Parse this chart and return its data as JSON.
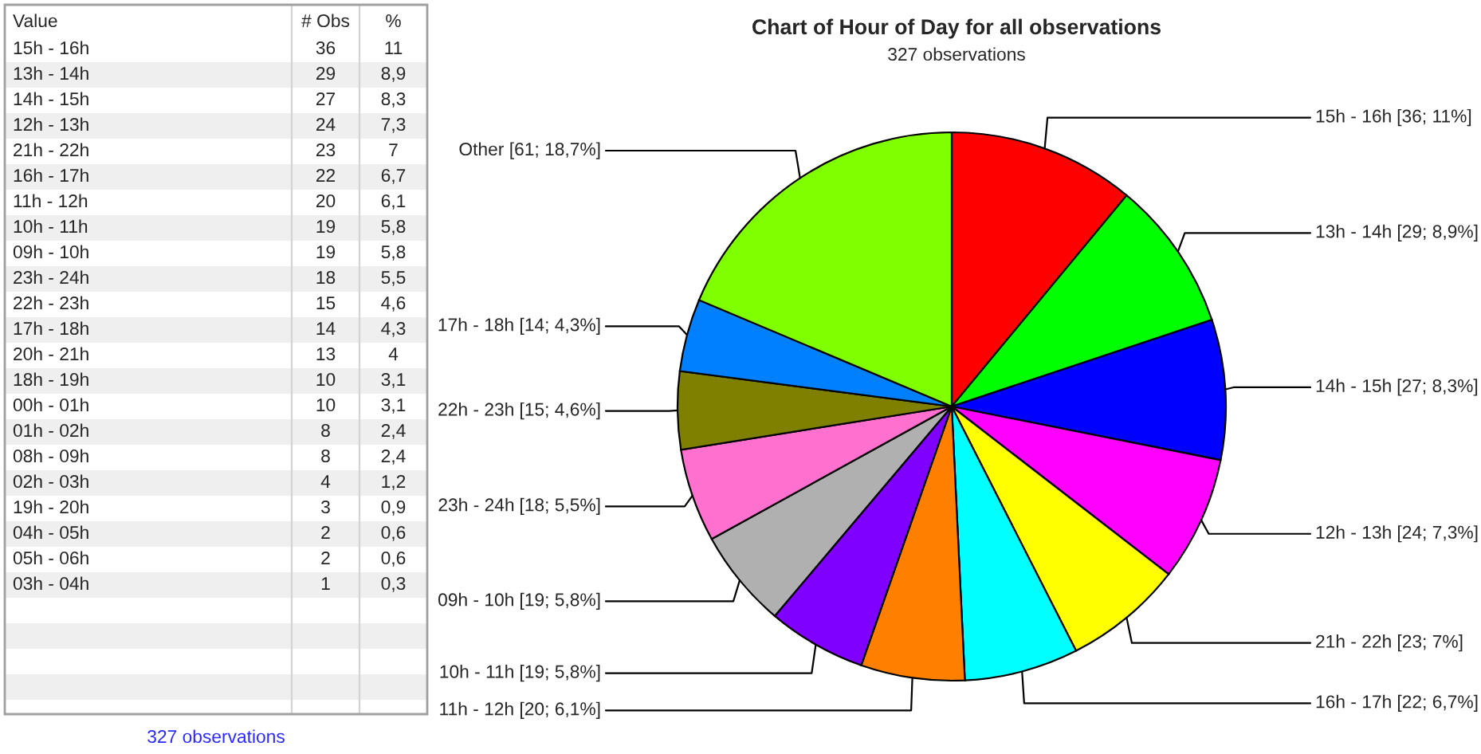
{
  "chart_data": [
    {
      "type": "other",
      "ylabel": "Value",
      "data_labels": true,
      "categories": [
        "15h - 16h",
        "13h - 14h",
        "14h - 15h",
        "12h - 13h",
        "21h - 22h",
        "16h - 17h",
        "11h - 12h",
        "10h - 11h",
        "09h - 10h",
        "23h - 24h",
        "22h - 23h",
        "17h - 18h",
        "20h - 21h",
        "18h - 19h",
        "00h - 01h",
        "01h - 02h",
        "08h - 09h",
        "02h - 03h",
        "19h - 20h",
        "04h - 05h",
        "05h - 06h",
        "03h - 04h"
      ],
      "series": [
        {
          "name": "# Obs",
          "values": [
            36,
            29,
            27,
            24,
            23,
            22,
            20,
            19,
            19,
            18,
            15,
            14,
            13,
            10,
            10,
            8,
            8,
            4,
            3,
            2,
            2,
            1
          ]
        },
        {
          "name": "%",
          "values": [
            11,
            8.9,
            8.3,
            7.3,
            7,
            6.7,
            6.1,
            5.8,
            5.8,
            5.5,
            4.6,
            4.3,
            4,
            3.1,
            3.1,
            2.4,
            2.4,
            1.2,
            0.9,
            0.6,
            0.6,
            0.3
          ],
          "value_labels": [
            "11",
            "8,9",
            "8,3",
            "7,3",
            "7",
            "6,7",
            "6,1",
            "5,8",
            "5,8",
            "5,5",
            "4,6",
            "4,3",
            "4",
            "3,1",
            "3,1",
            "2,4",
            "2,4",
            "1,2",
            "0,9",
            "0,6",
            "0,6",
            "0,3"
          ]
        }
      ],
      "annotations": [
        "327 observations"
      ]
    },
    {
      "type": "pie",
      "title": "Chart of Hour of Day for all observations",
      "subtitle": "327 observations",
      "categories": [
        "15h - 16h",
        "13h - 14h",
        "14h - 15h",
        "12h - 13h",
        "21h - 22h",
        "16h - 17h",
        "11h - 12h",
        "10h - 11h",
        "09h - 10h",
        "23h - 24h",
        "22h - 23h",
        "17h - 18h",
        "Other"
      ],
      "values": [
        36,
        29,
        27,
        24,
        23,
        22,
        20,
        19,
        19,
        18,
        15,
        14,
        61
      ],
      "value_labels": [
        "[36; 11%]",
        "[29; 8,9%]",
        "[27; 8,3%]",
        "[24; 7,3%]",
        "[23; 7%]",
        "[22; 6,7%]",
        "[20; 6,1%]",
        "[19; 5,8%]",
        "[19; 5,8%]",
        "[18; 5,5%]",
        "[15; 4,6%]",
        "[14; 4,3%]",
        "[61; 18,7%]"
      ],
      "colors": [
        "#ff0000",
        "#00ff00",
        "#0000ff",
        "#ff00ff",
        "#ffff00",
        "#00ffff",
        "#ff8000",
        "#8000ff",
        "#b0b0b0",
        "#ff70cf",
        "#808000",
        "#0080ff",
        "#80ff00"
      ]
    }
  ]
}
